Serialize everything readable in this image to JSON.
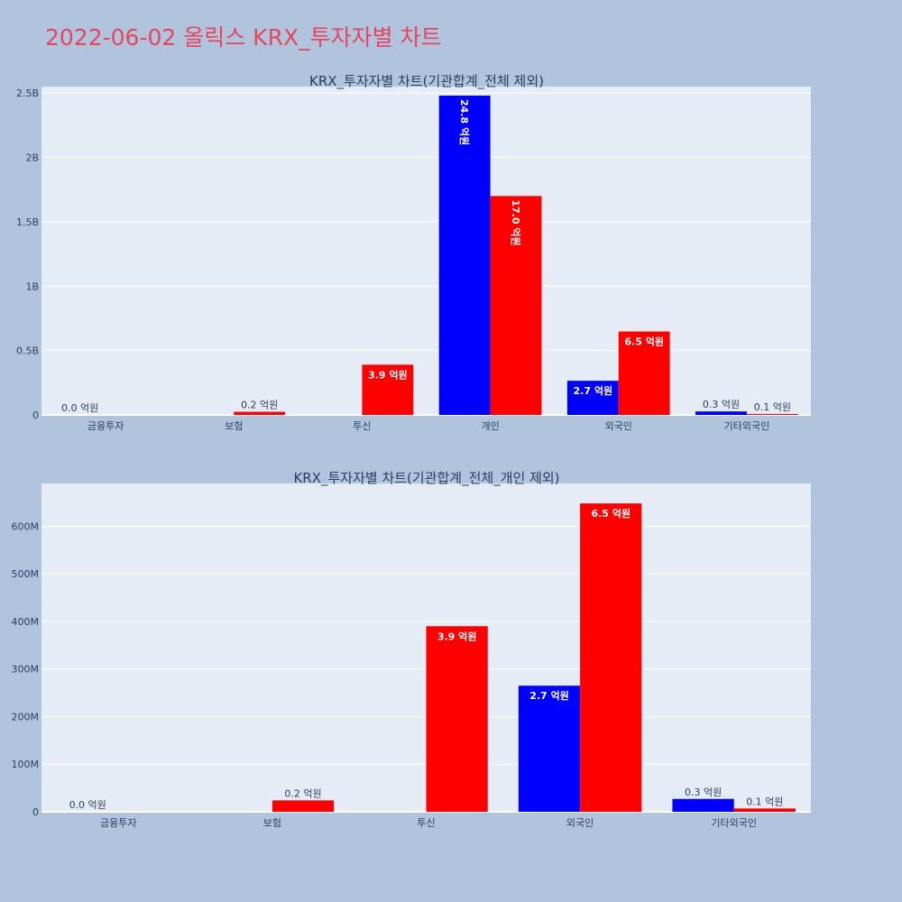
{
  "title": "2022-06-02 올릭스 KRX_투자자별 차트",
  "colors": {
    "page_bg": "#b0c4de",
    "plot_bg": "#e5ecf6",
    "grid": "#ffffff",
    "series_a": "#0000ff",
    "series_b": "#ff0000",
    "title": "#e8455a"
  },
  "chart_data": [
    {
      "type": "bar",
      "title": "KRX_투자자별 차트(기관합계_전체 제외)",
      "categories": [
        "금융투자",
        "보험",
        "투신",
        "개인",
        "외국인",
        "기타외국인"
      ],
      "ylim": [
        0,
        2550000000
      ],
      "ytick_values": [
        0,
        500000000,
        1000000000,
        1500000000,
        2000000000,
        2500000000
      ],
      "ytick_labels": [
        "0",
        "0.5B",
        "1B",
        "1.5B",
        "2B",
        "2.5B"
      ],
      "grid": true,
      "series": [
        {
          "color": "#0000ff",
          "values": [
            0,
            null,
            null,
            2480000000,
            265000000,
            27000000
          ],
          "labels": [
            "0.0 억원",
            "",
            "",
            "24.8 억원",
            "2.7 억원",
            "0.3 억원"
          ]
        },
        {
          "color": "#ff0000",
          "values": [
            null,
            24000000,
            390000000,
            1700000000,
            648000000,
            7000000
          ],
          "labels": [
            "",
            "0.2 억원",
            "3.9 억원",
            "17.0 억원",
            "6.5 억원",
            "0.1 억원"
          ]
        }
      ]
    },
    {
      "type": "bar",
      "title": "KRX_투자자별 차트(기관합계_전체_개인 제외)",
      "categories": [
        "금융투자",
        "보험",
        "투신",
        "외국인",
        "기타외국인"
      ],
      "ylim": [
        0,
        690000000
      ],
      "ytick_values": [
        0,
        100000000,
        200000000,
        300000000,
        400000000,
        500000000,
        600000000
      ],
      "ytick_labels": [
        "0",
        "100M",
        "200M",
        "300M",
        "400M",
        "500M",
        "600M"
      ],
      "grid": true,
      "series": [
        {
          "color": "#0000ff",
          "values": [
            0,
            null,
            null,
            265000000,
            27000000
          ],
          "labels": [
            "0.0 억원",
            "",
            "",
            "2.7 억원",
            "0.3 억원"
          ]
        },
        {
          "color": "#ff0000",
          "values": [
            null,
            24000000,
            390000000,
            648000000,
            7000000
          ],
          "labels": [
            "",
            "0.2 억원",
            "3.9 억원",
            "6.5 억원",
            "0.1 억원"
          ]
        }
      ]
    }
  ]
}
